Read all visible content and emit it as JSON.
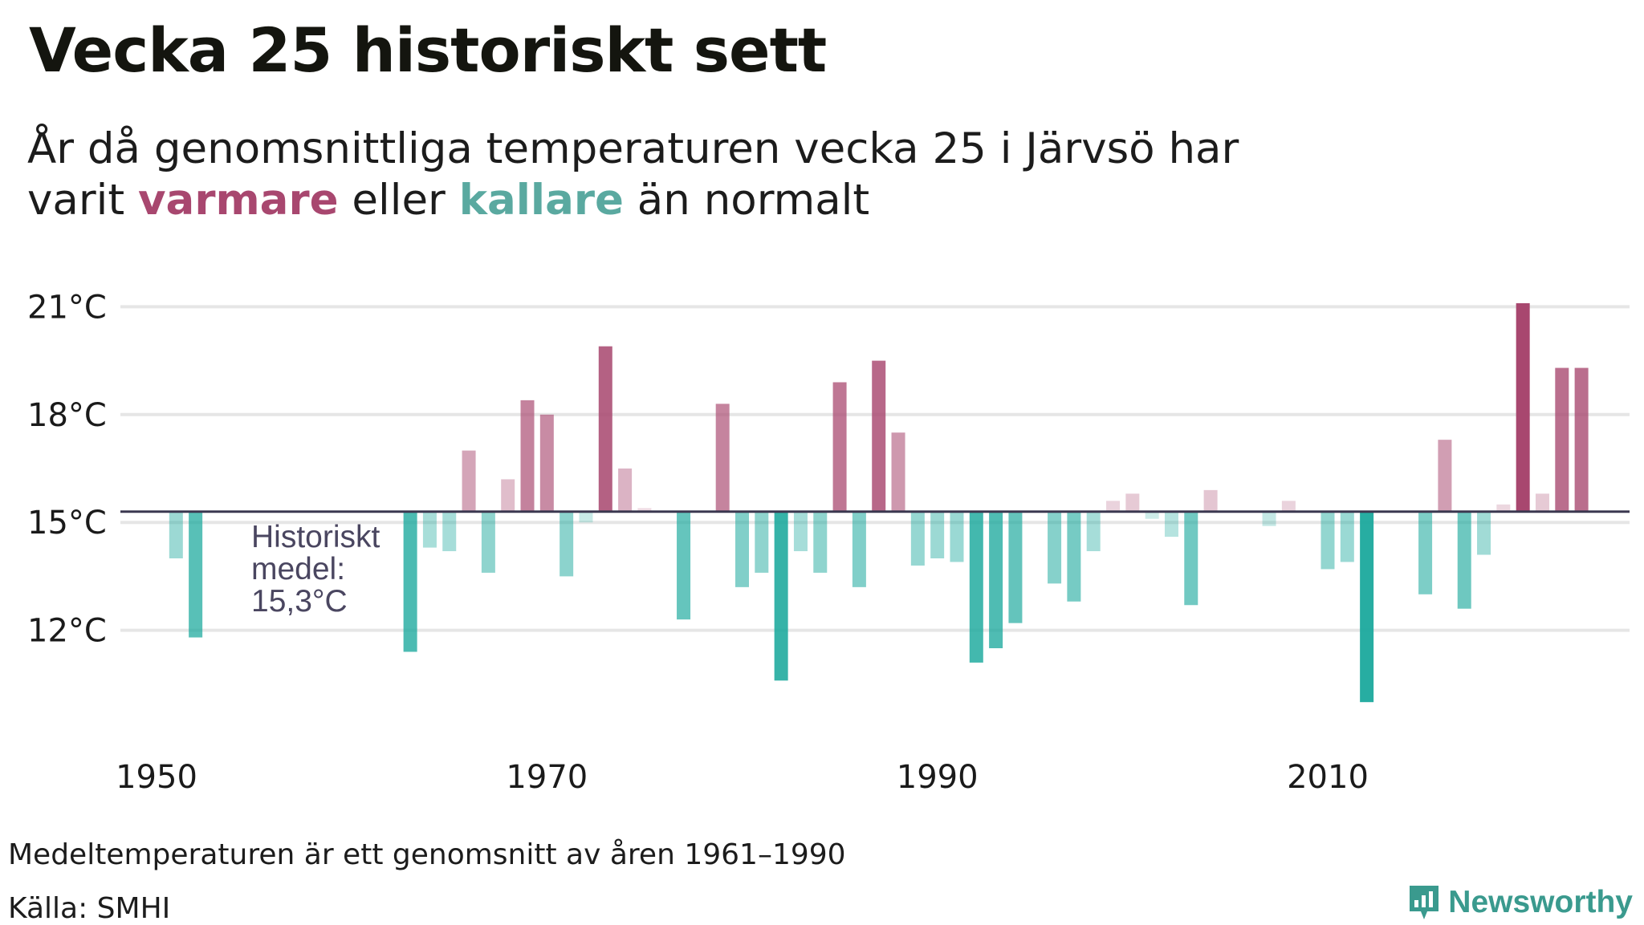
{
  "title": "Vecka 25 historiskt sett",
  "subtitle": {
    "line1": "År då genomsnittliga temperaturen vecka 25 i Järvsö har",
    "varit": "varit",
    "warm_word": "varmare",
    "eller": "eller",
    "cold_word": "kallare",
    "rest": "än normalt"
  },
  "colors": {
    "warm": "#a8476f",
    "cold": "#1aa89c",
    "baseline": "#3b3850",
    "grid": "#e6e6e6"
  },
  "footnote": "Medeltemperaturen är ett genomsnitt av åren 1961–1990",
  "source": "Källa: SMHI",
  "brand": "Newsworthy",
  "chart_data": {
    "type": "bar",
    "title": "Vecka 25 historiskt sett",
    "baseline": 15.3,
    "ylim": [
      9.0,
      21.5
    ],
    "y_ticks": [
      12,
      15,
      18,
      21
    ],
    "y_tick_labels": [
      "12°C",
      "15°C",
      "18°C",
      "21°C"
    ],
    "x_ticks": [
      1950,
      1970,
      1990,
      2010
    ],
    "x_tick_labels": [
      "1950",
      "1970",
      "1990",
      "2010"
    ],
    "xlim": [
      1948,
      2025
    ],
    "annotation": [
      "Historiskt",
      "medel:",
      "15,3°C"
    ],
    "years": [
      1951,
      1952,
      1963,
      1964,
      1965,
      1966,
      1967,
      1968,
      1969,
      1970,
      1971,
      1972,
      1973,
      1974,
      1975,
      1977,
      1979,
      1980,
      1981,
      1982,
      1983,
      1984,
      1985,
      1986,
      1987,
      1988,
      1989,
      1990,
      1991,
      1992,
      1993,
      1994,
      1996,
      1997,
      1998,
      1999,
      2000,
      2001,
      2002,
      2003,
      2004,
      2007,
      2008,
      2010,
      2011,
      2012,
      2015,
      2016,
      2017,
      2018,
      2019,
      2020,
      2021,
      2022,
      2023
    ],
    "values": [
      14.0,
      11.8,
      11.4,
      14.3,
      14.2,
      17.0,
      13.6,
      16.2,
      18.4,
      18.0,
      13.5,
      15.0,
      19.9,
      16.5,
      15.4,
      12.3,
      18.3,
      13.2,
      13.6,
      10.6,
      14.2,
      13.6,
      18.9,
      13.2,
      19.5,
      17.5,
      13.8,
      14.0,
      13.9,
      11.1,
      11.5,
      12.2,
      13.3,
      12.8,
      14.2,
      15.6,
      15.8,
      15.1,
      14.6,
      12.7,
      15.9,
      14.9,
      15.6,
      13.7,
      13.9,
      10.0,
      13.0,
      17.3,
      12.6,
      14.1,
      15.5,
      21.1,
      15.8,
      19.3,
      19.3
    ]
  }
}
